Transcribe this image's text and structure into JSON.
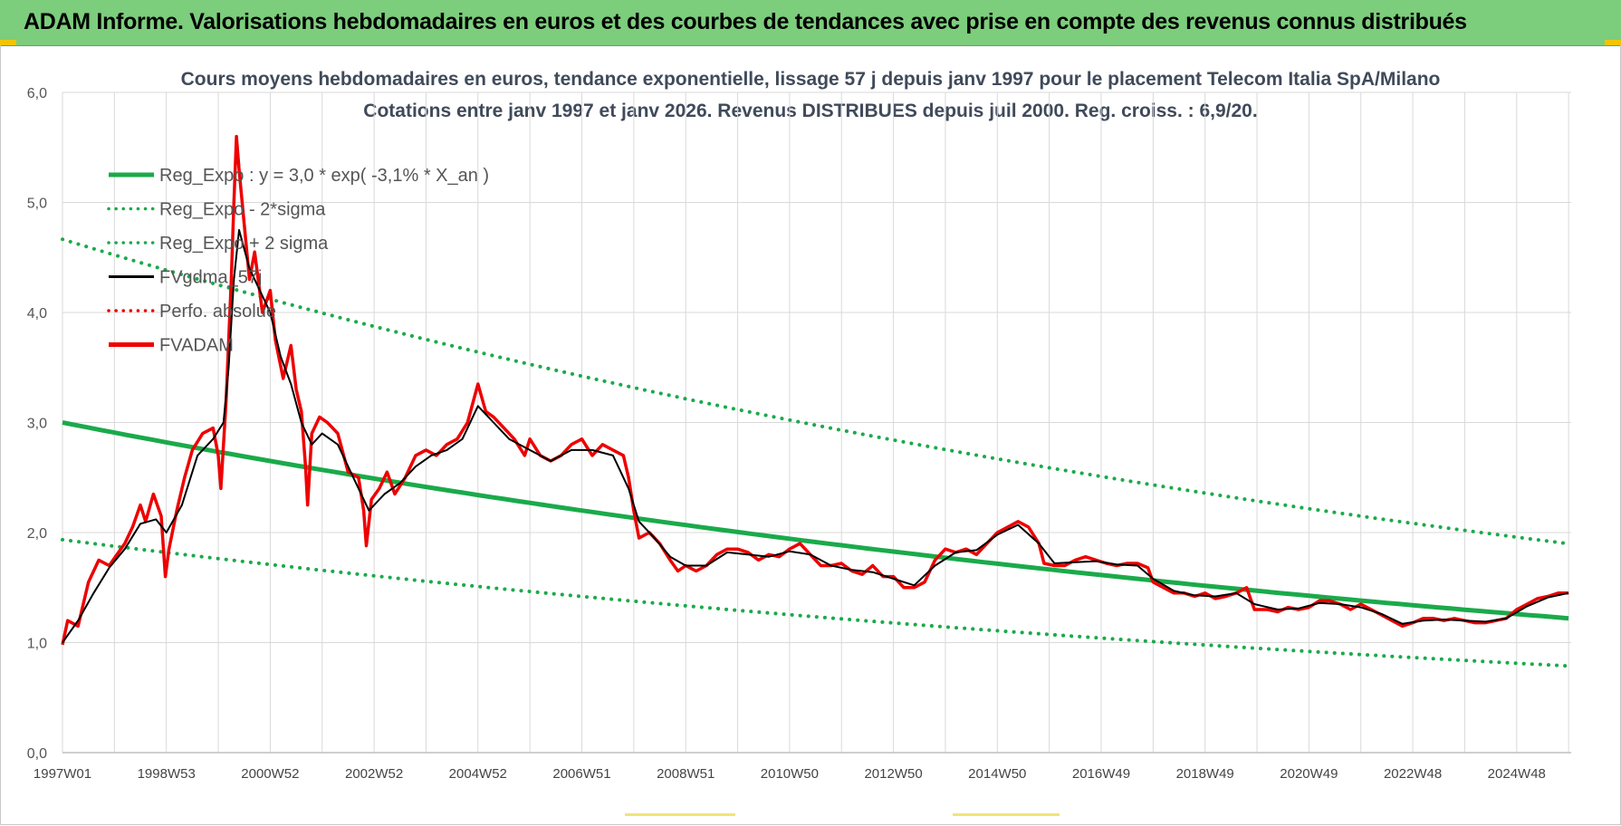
{
  "banner": {
    "title": "ADAM Informe. Valorisations hebdomadaires en euros et des courbes de tendances avec prise en compte des revenus connus distribués"
  },
  "colors": {
    "banner_bg": "#7ccd7c",
    "trend_green": "#1aaa4a",
    "price_red": "#ee0000",
    "smooth_black": "#000000",
    "grid": "#d9d9d9"
  },
  "chart_data": {
    "type": "line",
    "title_line1": "Cours moyens hebdomadaires en euros, tendance exponentielle, lissage 57 j depuis janv 1997 pour le placement Telecom Italia SpA/Milano",
    "title_line2": "Cotations entre janv 1997 et janv 2026. Revenus DISTRIBUES depuis juil 2000. Reg. croiss. : 6,9/20.",
    "xlabel": "",
    "ylabel": "",
    "ylim": [
      0,
      6
    ],
    "xlim": [
      1997.0,
      2026.05
    ],
    "y_ticks": [
      "0,0",
      "1,0",
      "2,0",
      "3,0",
      "4,0",
      "5,0",
      "6,0"
    ],
    "x_ticks": [
      {
        "label": "1997W01",
        "year": 1997.0
      },
      {
        "label": "1998W53",
        "year": 1999.0
      },
      {
        "label": "2000W52",
        "year": 2001.0
      },
      {
        "label": "2002W52",
        "year": 2003.0
      },
      {
        "label": "2004W52",
        "year": 2005.0
      },
      {
        "label": "2006W51",
        "year": 2007.0
      },
      {
        "label": "2008W51",
        "year": 2009.0
      },
      {
        "label": "2010W50",
        "year": 2011.0
      },
      {
        "label": "2012W50",
        "year": 2013.0
      },
      {
        "label": "2014W50",
        "year": 2015.0
      },
      {
        "label": "2016W49",
        "year": 2017.0
      },
      {
        "label": "2018W49",
        "year": 2019.0
      },
      {
        "label": "2020W49",
        "year": 2021.0
      },
      {
        "label": "2022W48",
        "year": 2023.0
      },
      {
        "label": "2024W48",
        "year": 2025.0
      }
    ],
    "grid": true,
    "legend_position": "top-left",
    "legend": [
      {
        "name": "Reg_Expo : y = 3,0 * exp( -3,1% *  X_an )",
        "style": "solid",
        "color": "#1aaa4a"
      },
      {
        "name": "Reg_Expo - 2*sigma",
        "style": "dotted",
        "color": "#1aaa4a"
      },
      {
        "name": "Reg_Expo + 2 sigma",
        "style": "dotted",
        "color": "#1aaa4a"
      },
      {
        "name": "FVgdma_57j",
        "style": "solid",
        "color": "#000000"
      },
      {
        "name": "Perfo. absolue",
        "style": "dotted",
        "color": "#ee0000"
      },
      {
        "name": "FVADAM",
        "style": "solid",
        "color": "#ee0000"
      }
    ],
    "trend": {
      "a": 3.0,
      "rate": -0.031,
      "x0": 1997.0,
      "minus_2sigma_factor": 0.645,
      "plus_2sigma_factor": 1.555
    },
    "series": [
      {
        "name": "FVADAM",
        "points": [
          [
            1997.0,
            0.98
          ],
          [
            1997.1,
            1.2
          ],
          [
            1997.3,
            1.15
          ],
          [
            1997.5,
            1.55
          ],
          [
            1997.7,
            1.75
          ],
          [
            1997.9,
            1.7
          ],
          [
            1998.05,
            1.8
          ],
          [
            1998.2,
            1.9
          ],
          [
            1998.35,
            2.05
          ],
          [
            1998.5,
            2.25
          ],
          [
            1998.6,
            2.1
          ],
          [
            1998.75,
            2.35
          ],
          [
            1998.9,
            2.15
          ],
          [
            1998.98,
            1.6
          ],
          [
            1999.05,
            1.85
          ],
          [
            1999.2,
            2.2
          ],
          [
            1999.35,
            2.5
          ],
          [
            1999.5,
            2.75
          ],
          [
            1999.7,
            2.9
          ],
          [
            1999.9,
            2.95
          ],
          [
            2000.0,
            2.7
          ],
          [
            2000.05,
            2.4
          ],
          [
            2000.15,
            3.2
          ],
          [
            2000.25,
            4.3
          ],
          [
            2000.3,
            5.0
          ],
          [
            2000.35,
            5.6
          ],
          [
            2000.4,
            5.3
          ],
          [
            2000.5,
            4.8
          ],
          [
            2000.6,
            4.3
          ],
          [
            2000.7,
            4.55
          ],
          [
            2000.85,
            4.0
          ],
          [
            2001.0,
            4.2
          ],
          [
            2001.1,
            3.75
          ],
          [
            2001.25,
            3.4
          ],
          [
            2001.4,
            3.7
          ],
          [
            2001.5,
            3.3
          ],
          [
            2001.6,
            3.1
          ],
          [
            2001.68,
            2.6
          ],
          [
            2001.72,
            2.25
          ],
          [
            2001.8,
            2.9
          ],
          [
            2001.95,
            3.05
          ],
          [
            2002.1,
            3.0
          ],
          [
            2002.3,
            2.9
          ],
          [
            2002.5,
            2.55
          ],
          [
            2002.7,
            2.5
          ],
          [
            2002.8,
            2.2
          ],
          [
            2002.85,
            1.88
          ],
          [
            2002.95,
            2.3
          ],
          [
            2003.1,
            2.4
          ],
          [
            2003.25,
            2.55
          ],
          [
            2003.4,
            2.35
          ],
          [
            2003.6,
            2.5
          ],
          [
            2003.8,
            2.7
          ],
          [
            2004.0,
            2.75
          ],
          [
            2004.2,
            2.7
          ],
          [
            2004.4,
            2.8
          ],
          [
            2004.6,
            2.85
          ],
          [
            2004.8,
            3.0
          ],
          [
            2005.0,
            3.35
          ],
          [
            2005.15,
            3.1
          ],
          [
            2005.3,
            3.05
          ],
          [
            2005.5,
            2.95
          ],
          [
            2005.7,
            2.85
          ],
          [
            2005.9,
            2.7
          ],
          [
            2006.0,
            2.85
          ],
          [
            2006.2,
            2.7
          ],
          [
            2006.4,
            2.65
          ],
          [
            2006.6,
            2.7
          ],
          [
            2006.8,
            2.8
          ],
          [
            2007.0,
            2.85
          ],
          [
            2007.2,
            2.7
          ],
          [
            2007.4,
            2.8
          ],
          [
            2007.6,
            2.75
          ],
          [
            2007.8,
            2.7
          ],
          [
            2007.9,
            2.5
          ],
          [
            2008.0,
            2.2
          ],
          [
            2008.1,
            1.95
          ],
          [
            2008.3,
            2.0
          ],
          [
            2008.5,
            1.9
          ],
          [
            2008.7,
            1.75
          ],
          [
            2008.85,
            1.65
          ],
          [
            2009.0,
            1.7
          ],
          [
            2009.2,
            1.65
          ],
          [
            2009.4,
            1.7
          ],
          [
            2009.6,
            1.8
          ],
          [
            2009.8,
            1.85
          ],
          [
            2010.0,
            1.85
          ],
          [
            2010.2,
            1.82
          ],
          [
            2010.4,
            1.75
          ],
          [
            2010.6,
            1.8
          ],
          [
            2010.8,
            1.78
          ],
          [
            2011.0,
            1.85
          ],
          [
            2011.2,
            1.9
          ],
          [
            2011.4,
            1.8
          ],
          [
            2011.6,
            1.7
          ],
          [
            2011.8,
            1.7
          ],
          [
            2012.0,
            1.72
          ],
          [
            2012.2,
            1.65
          ],
          [
            2012.4,
            1.62
          ],
          [
            2012.6,
            1.7
          ],
          [
            2012.8,
            1.6
          ],
          [
            2013.0,
            1.6
          ],
          [
            2013.2,
            1.5
          ],
          [
            2013.4,
            1.5
          ],
          [
            2013.6,
            1.55
          ],
          [
            2013.8,
            1.75
          ],
          [
            2014.0,
            1.85
          ],
          [
            2014.2,
            1.82
          ],
          [
            2014.4,
            1.85
          ],
          [
            2014.6,
            1.8
          ],
          [
            2014.8,
            1.9
          ],
          [
            2015.0,
            2.0
          ],
          [
            2015.2,
            2.05
          ],
          [
            2015.4,
            2.1
          ],
          [
            2015.6,
            2.05
          ],
          [
            2015.8,
            1.9
          ],
          [
            2015.9,
            1.72
          ],
          [
            2016.1,
            1.7
          ],
          [
            2016.3,
            1.7
          ],
          [
            2016.5,
            1.75
          ],
          [
            2016.7,
            1.78
          ],
          [
            2016.9,
            1.75
          ],
          [
            2017.1,
            1.72
          ],
          [
            2017.3,
            1.7
          ],
          [
            2017.5,
            1.72
          ],
          [
            2017.7,
            1.72
          ],
          [
            2017.9,
            1.68
          ],
          [
            2018.0,
            1.55
          ],
          [
            2018.2,
            1.5
          ],
          [
            2018.4,
            1.45
          ],
          [
            2018.6,
            1.45
          ],
          [
            2018.8,
            1.42
          ],
          [
            2019.0,
            1.45
          ],
          [
            2019.2,
            1.4
          ],
          [
            2019.4,
            1.42
          ],
          [
            2019.6,
            1.45
          ],
          [
            2019.8,
            1.5
          ],
          [
            2019.95,
            1.3
          ],
          [
            2020.2,
            1.3
          ],
          [
            2020.4,
            1.28
          ],
          [
            2020.6,
            1.32
          ],
          [
            2020.8,
            1.3
          ],
          [
            2021.0,
            1.32
          ],
          [
            2021.2,
            1.38
          ],
          [
            2021.4,
            1.38
          ],
          [
            2021.6,
            1.35
          ],
          [
            2021.8,
            1.3
          ],
          [
            2022.0,
            1.35
          ],
          [
            2022.2,
            1.3
          ],
          [
            2022.4,
            1.25
          ],
          [
            2022.6,
            1.2
          ],
          [
            2022.8,
            1.15
          ],
          [
            2023.0,
            1.18
          ],
          [
            2023.2,
            1.22
          ],
          [
            2023.4,
            1.22
          ],
          [
            2023.6,
            1.2
          ],
          [
            2023.8,
            1.22
          ],
          [
            2024.0,
            1.2
          ],
          [
            2024.2,
            1.18
          ],
          [
            2024.4,
            1.18
          ],
          [
            2024.6,
            1.2
          ],
          [
            2024.8,
            1.22
          ],
          [
            2025.0,
            1.3
          ],
          [
            2025.2,
            1.35
          ],
          [
            2025.4,
            1.4
          ],
          [
            2025.6,
            1.42
          ],
          [
            2025.8,
            1.45
          ],
          [
            2026.0,
            1.45
          ]
        ]
      },
      {
        "name": "FVgdma_57j",
        "points": [
          [
            1997.0,
            1.0
          ],
          [
            1997.3,
            1.2
          ],
          [
            1997.6,
            1.45
          ],
          [
            1997.9,
            1.68
          ],
          [
            1998.2,
            1.85
          ],
          [
            1998.5,
            2.08
          ],
          [
            1998.8,
            2.12
          ],
          [
            1999.0,
            2.0
          ],
          [
            1999.3,
            2.25
          ],
          [
            1999.6,
            2.7
          ],
          [
            1999.9,
            2.85
          ],
          [
            2000.1,
            3.0
          ],
          [
            2000.2,
            3.5
          ],
          [
            2000.3,
            4.3
          ],
          [
            2000.4,
            4.75
          ],
          [
            2000.6,
            4.4
          ],
          [
            2000.8,
            4.2
          ],
          [
            2001.0,
            4.0
          ],
          [
            2001.2,
            3.6
          ],
          [
            2001.4,
            3.35
          ],
          [
            2001.6,
            3.0
          ],
          [
            2001.8,
            2.8
          ],
          [
            2002.0,
            2.9
          ],
          [
            2002.3,
            2.8
          ],
          [
            2002.6,
            2.5
          ],
          [
            2002.9,
            2.2
          ],
          [
            2003.2,
            2.35
          ],
          [
            2003.5,
            2.45
          ],
          [
            2003.8,
            2.6
          ],
          [
            2004.1,
            2.7
          ],
          [
            2004.4,
            2.75
          ],
          [
            2004.7,
            2.85
          ],
          [
            2005.0,
            3.15
          ],
          [
            2005.3,
            3.0
          ],
          [
            2005.6,
            2.85
          ],
          [
            2006.0,
            2.75
          ],
          [
            2006.4,
            2.65
          ],
          [
            2006.8,
            2.75
          ],
          [
            2007.2,
            2.75
          ],
          [
            2007.6,
            2.7
          ],
          [
            2007.9,
            2.4
          ],
          [
            2008.1,
            2.1
          ],
          [
            2008.4,
            1.95
          ],
          [
            2008.7,
            1.78
          ],
          [
            2009.0,
            1.7
          ],
          [
            2009.4,
            1.7
          ],
          [
            2009.8,
            1.82
          ],
          [
            2010.2,
            1.8
          ],
          [
            2010.6,
            1.78
          ],
          [
            2011.0,
            1.83
          ],
          [
            2011.4,
            1.8
          ],
          [
            2011.8,
            1.7
          ],
          [
            2012.2,
            1.66
          ],
          [
            2012.6,
            1.64
          ],
          [
            2013.0,
            1.58
          ],
          [
            2013.4,
            1.52
          ],
          [
            2013.8,
            1.7
          ],
          [
            2014.2,
            1.82
          ],
          [
            2014.6,
            1.84
          ],
          [
            2015.0,
            1.98
          ],
          [
            2015.4,
            2.07
          ],
          [
            2015.8,
            1.9
          ],
          [
            2016.1,
            1.72
          ],
          [
            2016.5,
            1.73
          ],
          [
            2016.9,
            1.74
          ],
          [
            2017.3,
            1.71
          ],
          [
            2017.7,
            1.7
          ],
          [
            2018.0,
            1.58
          ],
          [
            2018.4,
            1.47
          ],
          [
            2018.8,
            1.43
          ],
          [
            2019.2,
            1.42
          ],
          [
            2019.6,
            1.45
          ],
          [
            2019.95,
            1.35
          ],
          [
            2020.4,
            1.3
          ],
          [
            2020.8,
            1.31
          ],
          [
            2021.2,
            1.36
          ],
          [
            2021.6,
            1.35
          ],
          [
            2022.0,
            1.32
          ],
          [
            2022.4,
            1.26
          ],
          [
            2022.8,
            1.17
          ],
          [
            2023.2,
            1.2
          ],
          [
            2023.6,
            1.21
          ],
          [
            2024.0,
            1.2
          ],
          [
            2024.4,
            1.19
          ],
          [
            2024.8,
            1.22
          ],
          [
            2025.2,
            1.33
          ],
          [
            2025.6,
            1.41
          ],
          [
            2026.0,
            1.45
          ]
        ]
      }
    ]
  }
}
